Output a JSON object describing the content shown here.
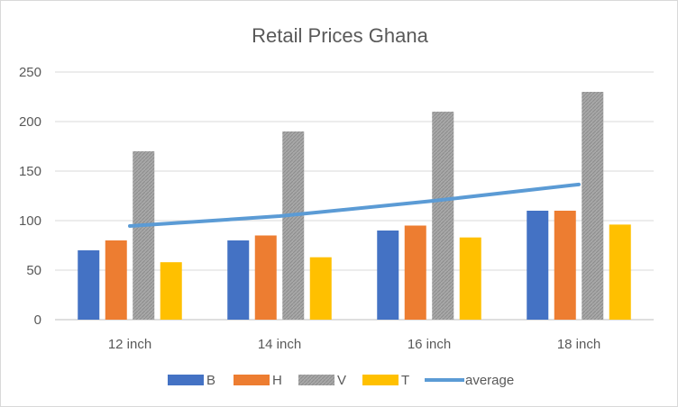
{
  "chart_data": {
    "type": "bar",
    "title": "Retail Prices Ghana",
    "xlabel": "",
    "ylabel": "",
    "categories": [
      "12 inch",
      "14 inch",
      "16 inch",
      "18 inch"
    ],
    "ylim": [
      0,
      250
    ],
    "yticks": [
      0,
      50,
      100,
      150,
      200,
      250
    ],
    "grid": true,
    "legend_position": "bottom",
    "series": [
      {
        "name": "B",
        "type": "bar",
        "color": "#4472C4",
        "values": [
          70,
          80,
          90,
          110
        ]
      },
      {
        "name": "H",
        "type": "bar",
        "color": "#ED7D31",
        "values": [
          80,
          85,
          95,
          110
        ]
      },
      {
        "name": "V",
        "type": "bar",
        "color": "#A5A5A5",
        "pattern": "hatched",
        "values": [
          170,
          190,
          210,
          230
        ]
      },
      {
        "name": "T",
        "type": "bar",
        "color": "#FFC000",
        "values": [
          58,
          63,
          83,
          96
        ]
      },
      {
        "name": "average",
        "type": "line",
        "color": "#5B9BD5",
        "values": [
          94.5,
          104.5,
          119.5,
          136.5
        ]
      }
    ]
  }
}
